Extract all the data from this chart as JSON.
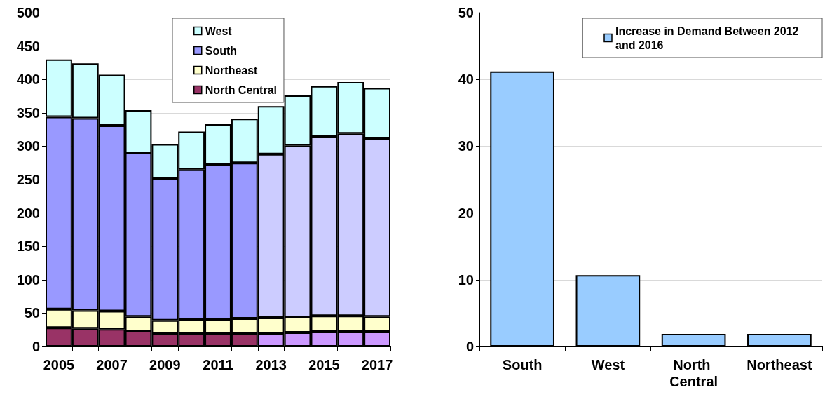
{
  "chart_data": [
    {
      "type": "bar",
      "stacked": true,
      "categories": [
        "2005",
        null,
        "2007",
        null,
        "2009",
        null,
        "2011",
        null,
        "2013",
        null,
        "2015",
        null,
        "2017"
      ],
      "series": [
        {
          "name": "North Central",
          "color": "#993366",
          "colors": [
            "#993366",
            "#993366",
            "#993366",
            "#993366",
            "#993366",
            "#993366",
            "#993366",
            "#993366",
            "#cc99ff",
            "#cc99ff",
            "#cc99ff",
            "#cc99ff",
            "#cc99ff"
          ],
          "values": [
            28,
            27,
            26,
            23,
            19,
            19,
            19,
            20,
            20,
            21,
            22,
            22,
            22
          ]
        },
        {
          "name": "Northeast",
          "color": "#ffffcc",
          "values": [
            28,
            27,
            27,
            22,
            20,
            21,
            22,
            22,
            23,
            23,
            24,
            24,
            23
          ]
        },
        {
          "name": "South",
          "color": "#9999ff",
          "colors": [
            "#9999ff",
            "#9999ff",
            "#9999ff",
            "#9999ff",
            "#9999ff",
            "#9999ff",
            "#9999ff",
            "#9999ff",
            "#ccccff",
            "#ccccff",
            "#ccccff",
            "#ccccff",
            "#ccccff"
          ],
          "values": [
            288,
            288,
            278,
            245,
            213,
            225,
            231,
            233,
            245,
            257,
            268,
            273,
            267
          ]
        },
        {
          "name": "West",
          "color": "#ccffff",
          "values": [
            86,
            82,
            76,
            64,
            51,
            57,
            61,
            66,
            72,
            75,
            76,
            77,
            75
          ]
        }
      ],
      "ylim": [
        0,
        500
      ],
      "yticks": [
        0,
        50,
        100,
        150,
        200,
        250,
        300,
        350,
        400,
        450,
        500
      ],
      "grid": "y",
      "legend": "top"
    },
    {
      "type": "bar",
      "categories": [
        "South",
        "West",
        "North Central",
        "Northeast"
      ],
      "series": [
        {
          "name": "Increase in Demand Between 2012 and 2016",
          "color": "#99ccff",
          "values": [
            41.2,
            10.7,
            1.9,
            1.9
          ]
        }
      ],
      "ylim": [
        0,
        50
      ],
      "yticks": [
        0,
        10,
        20,
        30,
        40,
        50
      ],
      "grid": "y",
      "legend": "top right"
    }
  ]
}
